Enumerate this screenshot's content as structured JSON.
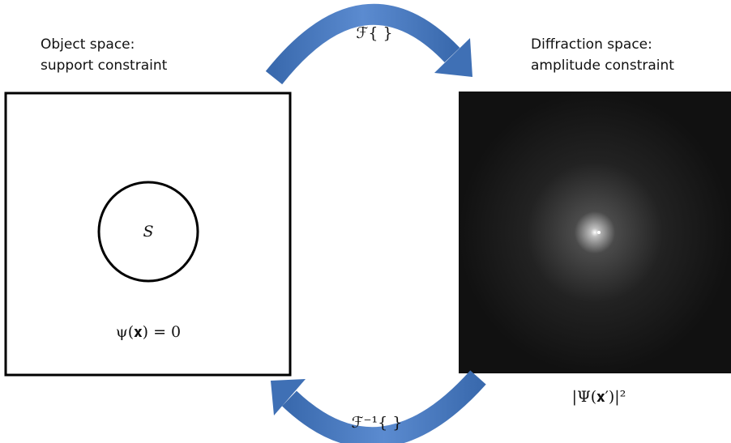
{
  "object_panel": {
    "title_line1": "Object space:",
    "title_line2": "support constraint",
    "support_label": "S",
    "equation": "ψ(𝐱) = 0"
  },
  "diffraction_panel": {
    "title_line1": "Diffraction space:",
    "title_line2": "amplitude constraint",
    "equation": "|Ψ(𝐱′)|²"
  },
  "forward_transform": "ℱ{ }",
  "inverse_transform": "ℱ⁻¹{ }"
}
